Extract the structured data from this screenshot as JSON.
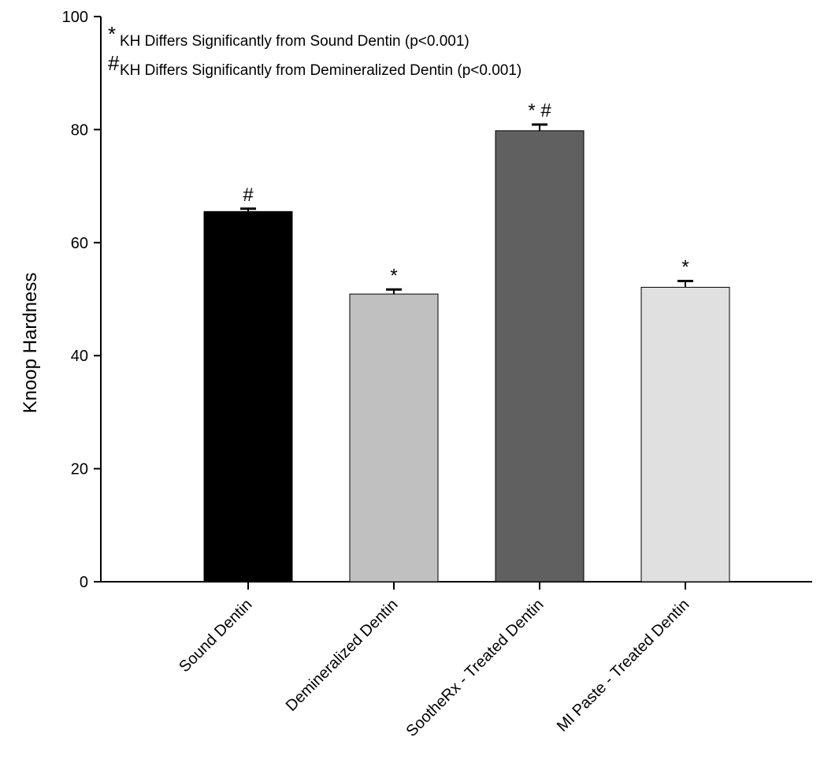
{
  "chart_data": {
    "type": "bar",
    "title": "",
    "xlabel": "",
    "ylabel": "Knoop Hardness",
    "ylim": [
      0,
      100
    ],
    "yticks": [
      0,
      20,
      40,
      60,
      80,
      100
    ],
    "grid": false,
    "categories": [
      "Sound Dentin",
      "Demineralized Dentin",
      "SootheRx - Treated Dentin",
      "MI Paste - Treated Dentin"
    ],
    "values": [
      65.5,
      50.9,
      79.8,
      52.1
    ],
    "errors": [
      0.5,
      0.8,
      1.1,
      1.1
    ],
    "bar_colors": [
      "#000000",
      "#c0c0c0",
      "#606060",
      "#e0e0e0"
    ],
    "significance_marks": [
      "#",
      "*",
      "* #",
      "*"
    ],
    "legend_notes": [
      {
        "symbol": "*",
        "text": "KH Differs Significantly from Sound Dentin (p<0.001)"
      },
      {
        "symbol": "#",
        "text": "KH Differs Significantly from Demineralized Dentin (p<0.001)"
      }
    ]
  }
}
